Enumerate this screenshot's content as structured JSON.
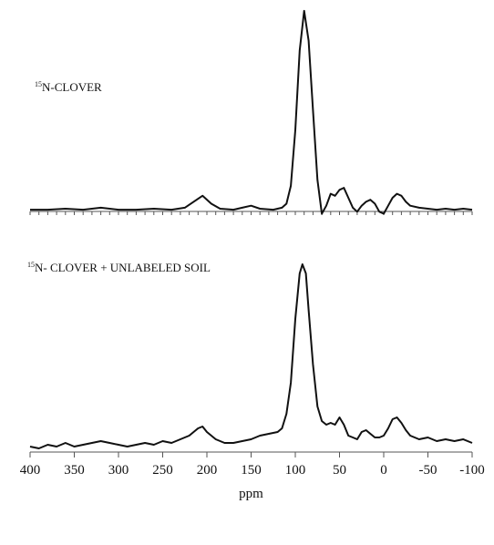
{
  "chart_data": [
    {
      "type": "line",
      "annotation": {
        "superscript": "15",
        "text": "N-CLOVER"
      },
      "x": [
        400,
        380,
        360,
        340,
        320,
        300,
        280,
        260,
        240,
        225,
        215,
        205,
        195,
        185,
        170,
        160,
        150,
        140,
        125,
        115,
        110,
        105,
        100,
        95,
        90,
        85,
        80,
        75,
        70,
        65,
        60,
        55,
        50,
        45,
        40,
        35,
        30,
        25,
        20,
        15,
        10,
        5,
        0,
        -5,
        -10,
        -15,
        -20,
        -25,
        -30,
        -40,
        -50,
        -60,
        -70,
        -80,
        -90,
        -100
      ],
      "values": [
        0,
        0,
        0.5,
        0,
        1,
        0,
        0,
        0.5,
        0,
        1,
        4,
        7,
        3,
        0.5,
        0,
        1,
        2,
        0.5,
        0,
        1,
        3,
        12,
        40,
        80,
        100,
        85,
        50,
        15,
        -2,
        2,
        8,
        7,
        10,
        11,
        6,
        1,
        -1,
        2,
        4,
        5,
        3,
        -1,
        -2,
        2,
        6,
        8,
        7,
        4,
        2,
        1,
        0.5,
        0,
        0.5,
        0,
        0.5,
        0
      ],
      "color": "#111111",
      "xlim": [
        400,
        -100
      ],
      "ylim": [
        -5,
        105
      ],
      "xticks": [
        400,
        390,
        380,
        370,
        360,
        350,
        340,
        330,
        320,
        310,
        300,
        290,
        280,
        270,
        260,
        250,
        240,
        230,
        220,
        210,
        200,
        190,
        180,
        170,
        160,
        150,
        140,
        130,
        120,
        110,
        100,
        90,
        80,
        70,
        60,
        50,
        40,
        30,
        20,
        10,
        0,
        -10,
        -20,
        -30,
        -40,
        -50,
        -60,
        -70,
        -80,
        -90,
        -100
      ],
      "xtick_labels": false
    },
    {
      "type": "line",
      "annotation": {
        "superscript": "15",
        "text": "N- CLOVER + UNLABELED SOIL"
      },
      "x": [
        400,
        390,
        380,
        370,
        360,
        350,
        340,
        330,
        320,
        310,
        300,
        290,
        280,
        270,
        260,
        250,
        240,
        230,
        220,
        210,
        205,
        200,
        190,
        180,
        170,
        160,
        150,
        140,
        130,
        120,
        115,
        110,
        105,
        100,
        95,
        92,
        88,
        85,
        80,
        75,
        70,
        65,
        60,
        55,
        50,
        45,
        40,
        35,
        30,
        25,
        20,
        15,
        10,
        5,
        0,
        -5,
        -10,
        -15,
        -20,
        -25,
        -30,
        -40,
        -50,
        -60,
        -70,
        -80,
        -90,
        -100
      ],
      "values": [
        0,
        -1,
        1,
        0,
        2,
        0,
        1,
        2,
        3,
        2,
        1,
        0,
        1,
        2,
        1,
        3,
        2,
        4,
        6,
        10,
        11,
        8,
        4,
        2,
        2,
        3,
        4,
        6,
        7,
        8,
        10,
        18,
        35,
        70,
        95,
        100,
        95,
        75,
        45,
        22,
        14,
        12,
        13,
        12,
        16,
        12,
        6,
        5,
        4,
        8,
        9,
        7,
        5,
        5,
        6,
        10,
        15,
        16,
        13,
        9,
        6,
        4,
        5,
        3,
        4,
        3,
        4,
        2
      ],
      "color": "#111111",
      "xlim": [
        400,
        -100
      ],
      "ylim": [
        -5,
        105
      ],
      "xticks": [
        400,
        350,
        300,
        250,
        200,
        150,
        100,
        50,
        0,
        -50,
        -100
      ],
      "xtick_labels": true,
      "xlabel": "ppm"
    }
  ]
}
